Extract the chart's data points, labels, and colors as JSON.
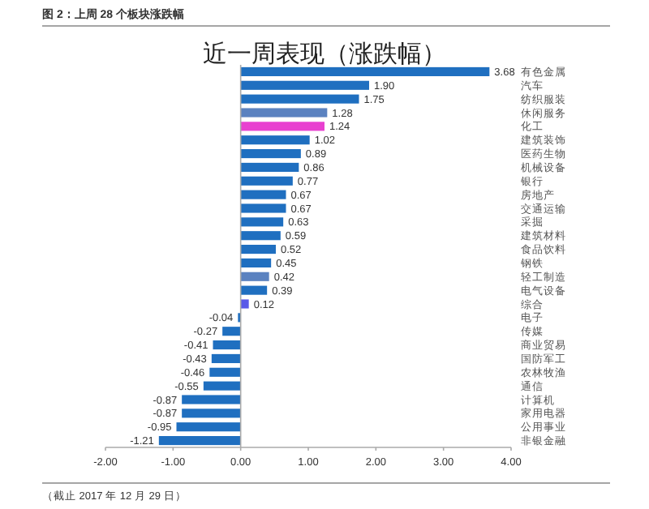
{
  "chart_data": {
    "type": "bar",
    "orientation": "horizontal",
    "title": "近一周表现（涨跌幅）",
    "annotations": [
      "图 2：上周 28 个板块涨跌幅",
      "（截止 2017 年 12 月 29 日）"
    ],
    "categories": [
      "有色金属",
      "汽车",
      "纺织服装",
      "休闲服务",
      "化工",
      "建筑装饰",
      "医药生物",
      "机械设备",
      "银行",
      "房地产",
      "交通运输",
      "采掘",
      "建筑材料",
      "食品饮料",
      "钢铁",
      "轻工制造",
      "电气设备",
      "综合",
      "电子",
      "传媒",
      "商业贸易",
      "国防军工",
      "农林牧渔",
      "通信",
      "计算机",
      "家用电器",
      "公用事业",
      "非银金融"
    ],
    "values": [
      3.68,
      1.9,
      1.75,
      1.28,
      1.24,
      1.02,
      0.89,
      0.86,
      0.77,
      0.67,
      0.67,
      0.63,
      0.59,
      0.52,
      0.45,
      0.42,
      0.39,
      0.12,
      -0.04,
      -0.27,
      -0.41,
      -0.43,
      -0.46,
      -0.55,
      -0.87,
      -0.87,
      -0.95,
      -1.21
    ],
    "value_labels": [
      "3.68",
      "1.90",
      "1.75",
      "1.28",
      "1.24",
      "1.02",
      "0.89",
      "0.86",
      "0.77",
      "0.67",
      "0.67",
      "0.63",
      "0.59",
      "0.52",
      "0.45",
      "0.42",
      "0.39",
      "0.12",
      "-0.04",
      "-0.27",
      "-0.41",
      "-0.43",
      "-0.46",
      "-0.55",
      "-0.87",
      "-0.87",
      "-0.95",
      "-1.21"
    ],
    "colors": [
      "#1f6fc0",
      "#1f6fc0",
      "#1f6fc0",
      "#5b82c0",
      "#e840d0",
      "#1f6fc0",
      "#1f6fc0",
      "#1f6fc0",
      "#1f6fc0",
      "#1f6fc0",
      "#1f6fc0",
      "#1f6fc0",
      "#1f6fc0",
      "#1f6fc0",
      "#1f6fc0",
      "#5b82c0",
      "#1f6fc0",
      "#5a5ae8",
      "#1f6fc0",
      "#1f6fc0",
      "#1f6fc0",
      "#1f6fc0",
      "#1f6fc0",
      "#1f6fc0",
      "#1f6fc0",
      "#1f6fc0",
      "#1f6fc0",
      "#1f6fc0"
    ],
    "xlim": [
      -2,
      4
    ],
    "xticks": [
      {
        "value": -2,
        "label": "-2.00"
      },
      {
        "value": -1,
        "label": "-1.00"
      },
      {
        "value": 0,
        "label": "0.00"
      },
      {
        "value": 1,
        "label": "1.00"
      },
      {
        "value": 2,
        "label": "2.00"
      },
      {
        "value": 3,
        "label": "3.00"
      },
      {
        "value": 4,
        "label": "4.00"
      }
    ],
    "tick_labels": "x"
  }
}
